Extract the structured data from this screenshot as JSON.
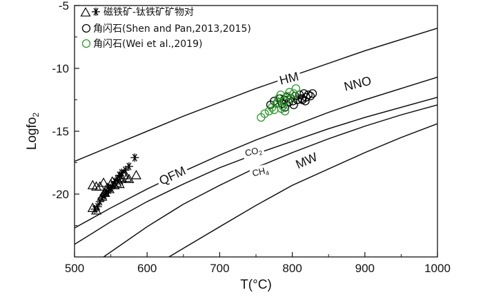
{
  "chart_data": {
    "type": "scatter",
    "xlabel": "T(°C)",
    "ylabel": "Logfo",
    "ylabel_sub": "2",
    "xlim": [
      500,
      1000
    ],
    "ylim": [
      -25,
      -5
    ],
    "x_ticks": [
      500,
      600,
      700,
      800,
      900,
      1000
    ],
    "y_ticks": [
      -5,
      -10,
      -15,
      -20
    ],
    "legend": {
      "placement": "top-left",
      "entries": [
        {
          "marker": "triangle+star",
          "label": "磁铁矿-钛铁矿矿物对",
          "color": "#000000"
        },
        {
          "marker": "circle",
          "label": "角闪石(Shen and Pan,2013,2015)",
          "color": "#000000"
        },
        {
          "marker": "circle",
          "label": "角闪石(Wei et al.,2019)",
          "color": "#2a9a2a"
        }
      ]
    },
    "curves": [
      {
        "name": "HM",
        "label": "HM",
        "points": [
          [
            500,
            -17.4
          ],
          [
            550,
            -16.2
          ],
          [
            600,
            -15.0
          ],
          [
            650,
            -13.8
          ],
          [
            700,
            -12.7
          ],
          [
            750,
            -11.6
          ],
          [
            800,
            -10.6
          ],
          [
            850,
            -9.6
          ],
          [
            900,
            -8.6
          ],
          [
            950,
            -7.7
          ],
          [
            1000,
            -6.8
          ]
        ]
      },
      {
        "name": "NNO",
        "label": "NNO",
        "points": [
          [
            500,
            -22.7
          ],
          [
            550,
            -21.1
          ],
          [
            600,
            -19.6
          ],
          [
            650,
            -18.2
          ],
          [
            700,
            -16.9
          ],
          [
            750,
            -15.7
          ],
          [
            800,
            -14.6
          ],
          [
            850,
            -13.5
          ],
          [
            900,
            -12.5
          ],
          [
            950,
            -11.6
          ],
          [
            1000,
            -10.7
          ]
        ]
      },
      {
        "name": "QFM",
        "label": "QFM",
        "points": [
          [
            500,
            -24.0
          ],
          [
            550,
            -22.2
          ],
          [
            600,
            -20.6
          ],
          [
            650,
            -19.2
          ],
          [
            700,
            -17.9
          ],
          [
            750,
            -16.8
          ],
          [
            800,
            -15.8
          ],
          [
            850,
            -14.8
          ],
          [
            900,
            -13.9
          ],
          [
            950,
            -13.1
          ],
          [
            1000,
            -12.3
          ]
        ]
      },
      {
        "name": "CO2-CH4",
        "label_top": "CO",
        "label_top_sub": "2",
        "label_bottom": "CH",
        "label_bottom_sub": "4",
        "points": [
          [
            540,
            -25.0
          ],
          [
            600,
            -22.6
          ],
          [
            650,
            -20.8
          ],
          [
            700,
            -19.3
          ],
          [
            750,
            -17.9
          ],
          [
            800,
            -16.7
          ],
          [
            850,
            -15.6
          ],
          [
            900,
            -14.6
          ],
          [
            950,
            -13.7
          ],
          [
            1000,
            -12.9
          ]
        ]
      },
      {
        "name": "MW",
        "label": "MW",
        "points": [
          [
            630,
            -25.0
          ],
          [
            700,
            -22.6
          ],
          [
            750,
            -20.9
          ],
          [
            800,
            -19.3
          ],
          [
            850,
            -18.0
          ],
          [
            900,
            -16.7
          ],
          [
            950,
            -15.5
          ],
          [
            1000,
            -14.4
          ]
        ]
      }
    ],
    "series": [
      {
        "name": "磁铁矿-钛铁矿矿物对 (triangle)",
        "marker": "triangle",
        "color": "#000000",
        "points": [
          [
            525,
            -19.3
          ],
          [
            530,
            -19.4
          ],
          [
            535,
            -19.4
          ],
          [
            540,
            -19.1
          ],
          [
            545,
            -19.5
          ],
          [
            550,
            -19.2
          ],
          [
            552,
            -19.0
          ],
          [
            555,
            -19.3
          ],
          [
            558,
            -19.1
          ],
          [
            560,
            -18.9
          ],
          [
            562,
            -18.7
          ],
          [
            565,
            -18.8
          ],
          [
            568,
            -18.5
          ],
          [
            572,
            -18.7
          ],
          [
            575,
            -18.8
          ],
          [
            562,
            -19.2
          ],
          [
            548,
            -19.6
          ],
          [
            585,
            -18.5
          ],
          [
            525,
            -21.1
          ],
          [
            530,
            -21.3
          ],
          [
            538,
            -20.2
          ],
          [
            542,
            -19.9
          ]
        ]
      },
      {
        "name": "磁铁矿-钛铁矿矿物对 (star)",
        "marker": "star",
        "color": "#000000",
        "points": [
          [
            528,
            -21.2
          ],
          [
            532,
            -21.0
          ],
          [
            535,
            -20.6
          ],
          [
            538,
            -20.3
          ],
          [
            541,
            -20.1
          ],
          [
            544,
            -19.9
          ],
          [
            547,
            -19.7
          ],
          [
            550,
            -19.5
          ],
          [
            553,
            -19.3
          ],
          [
            556,
            -19.0
          ],
          [
            559,
            -18.8
          ],
          [
            562,
            -18.5
          ],
          [
            565,
            -18.3
          ],
          [
            570,
            -18.1
          ],
          [
            575,
            -17.8
          ],
          [
            583,
            -17.1
          ]
        ]
      },
      {
        "name": "角闪石(Shen and Pan,2013,2015)",
        "marker": "circle",
        "color": "#000000",
        "points": [
          [
            770,
            -12.9
          ],
          [
            775,
            -12.6
          ],
          [
            780,
            -12.7
          ],
          [
            783,
            -12.4
          ],
          [
            786,
            -12.8
          ],
          [
            789,
            -12.5
          ],
          [
            792,
            -12.3
          ],
          [
            795,
            -12.7
          ],
          [
            798,
            -12.4
          ],
          [
            801,
            -12.6
          ],
          [
            804,
            -12.2
          ],
          [
            807,
            -12.5
          ],
          [
            810,
            -12.1
          ],
          [
            813,
            -12.4
          ],
          [
            816,
            -12.0
          ],
          [
            819,
            -12.3
          ],
          [
            822,
            -12.1
          ],
          [
            825,
            -12.2
          ],
          [
            828,
            -12.0
          ],
          [
            814,
            -12.5
          ],
          [
            802,
            -12.9
          ],
          [
            790,
            -13.1
          ],
          [
            818,
            -12.6
          ]
        ]
      },
      {
        "name": "角闪石(Wei et al.,2019)",
        "marker": "circle",
        "color": "#2a9a2a",
        "points": [
          [
            757,
            -13.9
          ],
          [
            762,
            -13.6
          ],
          [
            768,
            -13.4
          ],
          [
            772,
            -13.1
          ],
          [
            775,
            -13.3
          ],
          [
            778,
            -12.8
          ],
          [
            781,
            -12.4
          ],
          [
            784,
            -12.1
          ],
          [
            787,
            -13.0
          ],
          [
            790,
            -12.6
          ],
          [
            793,
            -12.2
          ],
          [
            796,
            -11.9
          ],
          [
            799,
            -12.4
          ],
          [
            802,
            -12.0
          ],
          [
            805,
            -11.6
          ],
          [
            790,
            -13.4
          ],
          [
            785,
            -13.2
          ],
          [
            780,
            -12.7
          ]
        ]
      }
    ]
  }
}
